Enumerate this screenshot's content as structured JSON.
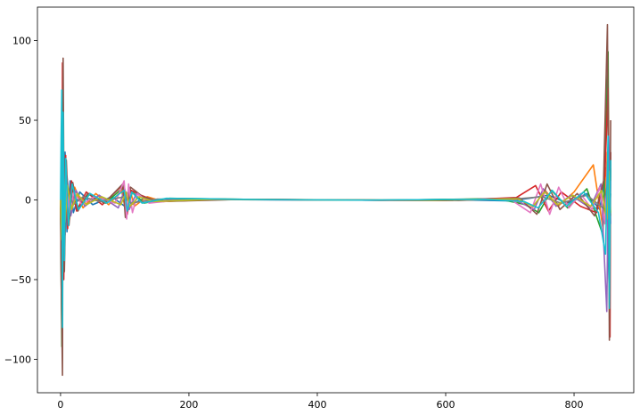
{
  "chart_data": {
    "type": "line",
    "title": "",
    "xlabel": "",
    "ylabel": "",
    "xlim": [
      -36,
      893
    ],
    "ylim": [
      -121,
      121
    ],
    "x_ticks": [
      {
        "value": 0,
        "label": "0"
      },
      {
        "value": 200,
        "label": "200"
      },
      {
        "value": 400,
        "label": "400"
      },
      {
        "value": 600,
        "label": "600"
      },
      {
        "value": 800,
        "label": "800"
      }
    ],
    "y_ticks": [
      {
        "value": 100,
        "label": "100"
      },
      {
        "value": 50,
        "label": "50"
      },
      {
        "value": 0,
        "label": "0"
      },
      {
        "value": -50,
        "label": "−50"
      },
      {
        "value": -100,
        "label": "−100"
      }
    ],
    "grid": false,
    "legend": "none",
    "x_range": [
      0,
      857
    ],
    "series": [
      {
        "color": "#1f77b4",
        "values": [
          [
            0,
            0
          ],
          [
            2,
            -75
          ],
          [
            3,
            60
          ],
          [
            5,
            -40
          ],
          [
            7,
            30
          ],
          [
            10,
            -20
          ],
          [
            15,
            12
          ],
          [
            20,
            -8
          ],
          [
            30,
            5
          ],
          [
            50,
            -3
          ],
          [
            80,
            2
          ],
          [
            100,
            -4
          ],
          [
            105,
            5
          ],
          [
            110,
            -3
          ],
          [
            130,
            1
          ],
          [
            150,
            -1
          ],
          [
            200,
            0.5
          ],
          [
            300,
            0.2
          ],
          [
            400,
            0
          ],
          [
            500,
            -0.2
          ],
          [
            600,
            0.3
          ],
          [
            700,
            -0.6
          ],
          [
            730,
            1
          ],
          [
            760,
            3
          ],
          [
            790,
            -2
          ],
          [
            820,
            4
          ],
          [
            840,
            -6
          ],
          [
            850,
            20
          ],
          [
            855,
            -60
          ],
          [
            857,
            30
          ]
        ]
      },
      {
        "color": "#ff7f0e",
        "values": [
          [
            0,
            0
          ],
          [
            2,
            -40
          ],
          [
            4,
            25
          ],
          [
            6,
            -30
          ],
          [
            9,
            18
          ],
          [
            14,
            -12
          ],
          [
            22,
            8
          ],
          [
            35,
            -5
          ],
          [
            55,
            4
          ],
          [
            75,
            -3
          ],
          [
            95,
            6
          ],
          [
            102,
            -8
          ],
          [
            108,
            7
          ],
          [
            115,
            -4
          ],
          [
            135,
            2
          ],
          [
            160,
            -1
          ],
          [
            250,
            0.5
          ],
          [
            400,
            0.1
          ],
          [
            550,
            -0.3
          ],
          [
            700,
            1
          ],
          [
            735,
            -5
          ],
          [
            755,
            6
          ],
          [
            775,
            -4
          ],
          [
            800,
            5
          ],
          [
            830,
            22
          ],
          [
            845,
            -18
          ],
          [
            852,
            30
          ],
          [
            857,
            -10
          ]
        ]
      },
      {
        "color": "#2ca02c",
        "values": [
          [
            0,
            0
          ],
          [
            2,
            -92
          ],
          [
            4,
            50
          ],
          [
            6,
            -35
          ],
          [
            8,
            24
          ],
          [
            12,
            -15
          ],
          [
            18,
            10
          ],
          [
            28,
            -6
          ],
          [
            45,
            4
          ],
          [
            70,
            -2
          ],
          [
            98,
            8
          ],
          [
            103,
            -6
          ],
          [
            112,
            5
          ],
          [
            130,
            -2
          ],
          [
            170,
            1
          ],
          [
            300,
            0.3
          ],
          [
            500,
            -0.2
          ],
          [
            680,
            0.8
          ],
          [
            725,
            -3
          ],
          [
            745,
            -8
          ],
          [
            765,
            6
          ],
          [
            790,
            -5
          ],
          [
            820,
            7
          ],
          [
            845,
            -22
          ],
          [
            853,
            93
          ],
          [
            855,
            -40
          ],
          [
            857,
            20
          ]
        ]
      },
      {
        "color": "#d62728",
        "values": [
          [
            0,
            0
          ],
          [
            2,
            -60
          ],
          [
            3,
            86
          ],
          [
            5,
            -50
          ],
          [
            8,
            28
          ],
          [
            11,
            -18
          ],
          [
            17,
            12
          ],
          [
            25,
            -7
          ],
          [
            40,
            5
          ],
          [
            65,
            -3
          ],
          [
            96,
            9
          ],
          [
            104,
            -9
          ],
          [
            110,
            6
          ],
          [
            125,
            3
          ],
          [
            150,
            -1
          ],
          [
            260,
            0.4
          ],
          [
            420,
            0
          ],
          [
            600,
            -0.4
          ],
          [
            710,
            1.5
          ],
          [
            740,
            9
          ],
          [
            760,
            -7
          ],
          [
            780,
            5
          ],
          [
            810,
            -4
          ],
          [
            835,
            -8
          ],
          [
            848,
            15
          ],
          [
            853,
            70
          ],
          [
            856,
            -86
          ],
          [
            857,
            30
          ]
        ]
      },
      {
        "color": "#9467bd",
        "values": [
          [
            0,
            0
          ],
          [
            2,
            -30
          ],
          [
            4,
            35
          ],
          [
            7,
            -22
          ],
          [
            10,
            15
          ],
          [
            16,
            -10
          ],
          [
            24,
            6
          ],
          [
            38,
            -4
          ],
          [
            60,
            3
          ],
          [
            90,
            -5
          ],
          [
            100,
            7
          ],
          [
            107,
            -6
          ],
          [
            118,
            4
          ],
          [
            140,
            -1
          ],
          [
            220,
            0.5
          ],
          [
            380,
            0.1
          ],
          [
            560,
            -0.3
          ],
          [
            705,
            0.8
          ],
          [
            738,
            -6
          ],
          [
            752,
            7
          ],
          [
            772,
            -4
          ],
          [
            795,
            3
          ],
          [
            825,
            -5
          ],
          [
            842,
            10
          ],
          [
            851,
            -70
          ],
          [
            854,
            40
          ],
          [
            857,
            -15
          ]
        ]
      },
      {
        "color": "#8c564b",
        "values": [
          [
            0,
            0
          ],
          [
            1,
            -50
          ],
          [
            3,
            -110
          ],
          [
            4,
            89
          ],
          [
            6,
            -45
          ],
          [
            9,
            25
          ],
          [
            13,
            -16
          ],
          [
            19,
            11
          ],
          [
            27,
            -7
          ],
          [
            42,
            4
          ],
          [
            68,
            -2
          ],
          [
            97,
            10
          ],
          [
            101,
            -11
          ],
          [
            109,
            8
          ],
          [
            128,
            2
          ],
          [
            155,
            -1
          ],
          [
            280,
            0.3
          ],
          [
            450,
            0
          ],
          [
            620,
            -0.3
          ],
          [
            715,
            1.2
          ],
          [
            742,
            -9
          ],
          [
            758,
            10
          ],
          [
            778,
            -6
          ],
          [
            805,
            4
          ],
          [
            832,
            -10
          ],
          [
            846,
            12
          ],
          [
            852,
            110
          ],
          [
            855,
            -88
          ],
          [
            857,
            50
          ]
        ]
      },
      {
        "color": "#e377c2",
        "values": [
          [
            0,
            0
          ],
          [
            2,
            -20
          ],
          [
            4,
            30
          ],
          [
            6,
            -18
          ],
          [
            9,
            12
          ],
          [
            14,
            -8
          ],
          [
            21,
            5
          ],
          [
            33,
            -3
          ],
          [
            52,
            2
          ],
          [
            85,
            -2
          ],
          [
            99,
            12
          ],
          [
            103,
            -12
          ],
          [
            106,
            10
          ],
          [
            112,
            -8
          ],
          [
            120,
            4
          ],
          [
            138,
            -2
          ],
          [
            200,
            0.5
          ],
          [
            360,
            0
          ],
          [
            540,
            -0.2
          ],
          [
            700,
            0.6
          ],
          [
            732,
            -8
          ],
          [
            748,
            10
          ],
          [
            762,
            -9
          ],
          [
            776,
            8
          ],
          [
            792,
            -5
          ],
          [
            810,
            4
          ],
          [
            828,
            -6
          ],
          [
            840,
            8
          ],
          [
            848,
            -15
          ],
          [
            852,
            25
          ],
          [
            855,
            -20
          ],
          [
            857,
            12
          ]
        ]
      },
      {
        "color": "#7f7f7f",
        "values": [
          [
            0,
            0
          ],
          [
            2,
            -10
          ],
          [
            4,
            12
          ],
          [
            7,
            -8
          ],
          [
            12,
            5
          ],
          [
            20,
            -3
          ],
          [
            35,
            2
          ],
          [
            60,
            -1
          ],
          [
            100,
            2
          ],
          [
            110,
            -2
          ],
          [
            150,
            0.5
          ],
          [
            300,
            0.1
          ],
          [
            500,
            -0.1
          ],
          [
            700,
            0.3
          ],
          [
            750,
            2
          ],
          [
            780,
            -2
          ],
          [
            820,
            3
          ],
          [
            845,
            -5
          ],
          [
            852,
            10
          ],
          [
            855,
            -8
          ],
          [
            857,
            4
          ]
        ]
      },
      {
        "color": "#bcbd22",
        "values": [
          [
            0,
            0
          ],
          [
            2,
            -25
          ],
          [
            4,
            20
          ],
          [
            7,
            -14
          ],
          [
            11,
            9
          ],
          [
            17,
            -6
          ],
          [
            26,
            4
          ],
          [
            40,
            -3
          ],
          [
            64,
            2
          ],
          [
            94,
            -3
          ],
          [
            102,
            5
          ],
          [
            108,
            -4
          ],
          [
            122,
            2
          ],
          [
            145,
            -1
          ],
          [
            240,
            0.4
          ],
          [
            410,
            0
          ],
          [
            580,
            -0.2
          ],
          [
            712,
            0.7
          ],
          [
            736,
            -4
          ],
          [
            754,
            5
          ],
          [
            774,
            -3
          ],
          [
            798,
            3
          ],
          [
            826,
            -4
          ],
          [
            843,
            6
          ],
          [
            851,
            -12
          ],
          [
            854,
            18
          ],
          [
            857,
            -8
          ]
        ]
      },
      {
        "color": "#17becf",
        "values": [
          [
            0,
            0
          ],
          [
            1,
            40
          ],
          [
            2,
            69
          ],
          [
            3,
            -80
          ],
          [
            4,
            55
          ],
          [
            6,
            -38
          ],
          [
            8,
            26
          ],
          [
            12,
            -16
          ],
          [
            18,
            10
          ],
          [
            28,
            -6
          ],
          [
            46,
            4
          ],
          [
            72,
            -2
          ],
          [
            99,
            6
          ],
          [
            104,
            -7
          ],
          [
            111,
            5
          ],
          [
            127,
            -2
          ],
          [
            165,
            1
          ],
          [
            320,
            0.2
          ],
          [
            480,
            -0.1
          ],
          [
            660,
            0.4
          ],
          [
            722,
            -1
          ],
          [
            744,
            -5
          ],
          [
            766,
            6
          ],
          [
            788,
            -4
          ],
          [
            815,
            5
          ],
          [
            838,
            -8
          ],
          [
            849,
            -34
          ],
          [
            853,
            40
          ],
          [
            855,
            -68
          ],
          [
            857,
            25
          ]
        ]
      }
    ]
  }
}
